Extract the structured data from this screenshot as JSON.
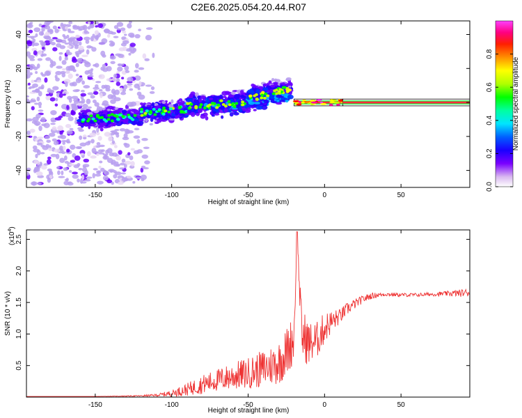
{
  "title": "C2E6.2025.054.20.44.R07",
  "colorbar": {
    "label": "Normalized spectral amplitude",
    "ticks": [
      "0.0",
      "0.2",
      "0.4",
      "0.6",
      "0.8"
    ],
    "tick_values": [
      0.0,
      0.2,
      0.4,
      0.6,
      0.8
    ]
  },
  "chart_data": [
    {
      "type": "heatmap",
      "xlabel": "Height of straight line (km)",
      "ylabel": "Frequency (Hz)",
      "xlim": [
        -195,
        95
      ],
      "ylim": [
        -50,
        48
      ],
      "x_ticks": [
        {
          "value": -150,
          "label": "-150"
        },
        {
          "value": -100,
          "label": "-100"
        },
        {
          "value": -50,
          "label": "-50"
        },
        {
          "value": 0,
          "label": "0"
        },
        {
          "value": 50,
          "label": "50"
        }
      ],
      "y_ticks": [
        {
          "value": -40,
          "label": "-40"
        },
        {
          "value": -20,
          "label": "-20"
        },
        {
          "value": 0,
          "label": "0"
        },
        {
          "value": 20,
          "label": "20"
        },
        {
          "value": 40,
          "label": "40"
        }
      ],
      "colormap": [
        "#e9d8f4",
        "#b9a0f0",
        "#6a00ff",
        "#2200ff",
        "#0033ff",
        "#00b8ff",
        "#00ffc8",
        "#00ff00",
        "#c8ff00",
        "#ffff00",
        "#ff8000",
        "#ff0000",
        "#ff00a0",
        "#ff33ff"
      ],
      "bands": [
        {
          "x_start": -195,
          "x_end": -110,
          "freq_center": 0,
          "spread": 48,
          "amplitude": 0.08
        },
        {
          "x_start": -160,
          "x_end": -120,
          "freq_center": -10,
          "spread": 6,
          "amplitude": 0.28
        },
        {
          "x_start": -120,
          "x_end": -90,
          "freq_center": -6,
          "spread": 6,
          "amplitude": 0.3
        },
        {
          "x_start": -90,
          "x_end": -50,
          "freq_center": -2,
          "spread": 7,
          "amplitude": 0.35
        },
        {
          "x_start": -50,
          "x_end": -22,
          "freq_center": 2,
          "spread": 8,
          "amplitude": 0.38
        },
        {
          "x_start": -20,
          "x_end": 12,
          "freq_center": 0,
          "spread": 2,
          "amplitude": 0.85
        },
        {
          "x_start": 12,
          "x_end": 95,
          "freq_center": 0,
          "spread": 1,
          "amplitude": 0.95
        }
      ]
    },
    {
      "type": "line",
      "xlabel": "Height of straight line (km)",
      "ylabel": "SNR (10 * v/v)",
      "y_multiplier_label": "(x10",
      "y_multiplier_exp": "4",
      "y_multiplier_close": ")",
      "xlim": [
        -195,
        95
      ],
      "ylim": [
        0,
        2.65
      ],
      "x_ticks": [
        {
          "value": -150,
          "label": "-150"
        },
        {
          "value": -100,
          "label": "-100"
        },
        {
          "value": -50,
          "label": "-50"
        },
        {
          "value": 0,
          "label": "0"
        },
        {
          "value": 50,
          "label": "50"
        }
      ],
      "y_ticks": [
        {
          "value": 0.5,
          "label": "0.5"
        },
        {
          "value": 1.0,
          "label": "1.0"
        },
        {
          "value": 1.5,
          "label": "1.5"
        },
        {
          "value": 2.0,
          "label": "2.0"
        },
        {
          "value": 2.5,
          "label": "2.5"
        }
      ],
      "series": [
        {
          "color": "#ee3333",
          "x": [
            -195,
            -150,
            -120,
            -110,
            -100,
            -90,
            -80,
            -70,
            -60,
            -50,
            -40,
            -30,
            -25,
            -20,
            -18,
            -15,
            -10,
            -5,
            0,
            5,
            10,
            15,
            20,
            25,
            30,
            35,
            40,
            50,
            60,
            70,
            80,
            90,
            95
          ],
          "y": [
            0.01,
            0.01,
            0.02,
            0.03,
            0.06,
            0.12,
            0.2,
            0.27,
            0.33,
            0.38,
            0.45,
            0.55,
            0.7,
            0.95,
            2.62,
            1.0,
            0.85,
            0.9,
            1.1,
            1.2,
            1.28,
            1.4,
            1.48,
            1.55,
            1.6,
            1.62,
            1.63,
            1.62,
            1.62,
            1.63,
            1.64,
            1.65,
            1.66
          ],
          "noise": [
            0,
            0,
            0.01,
            0.02,
            0.05,
            0.1,
            0.15,
            0.18,
            0.22,
            0.25,
            0.3,
            0.35,
            0.4,
            0.4,
            0,
            0.45,
            0.35,
            0.3,
            0.25,
            0.18,
            0.12,
            0.1,
            0.08,
            0.06,
            0.05,
            0.04,
            0.03,
            0.03,
            0.03,
            0.03,
            0.04,
            0.06,
            0.06
          ]
        }
      ]
    }
  ]
}
